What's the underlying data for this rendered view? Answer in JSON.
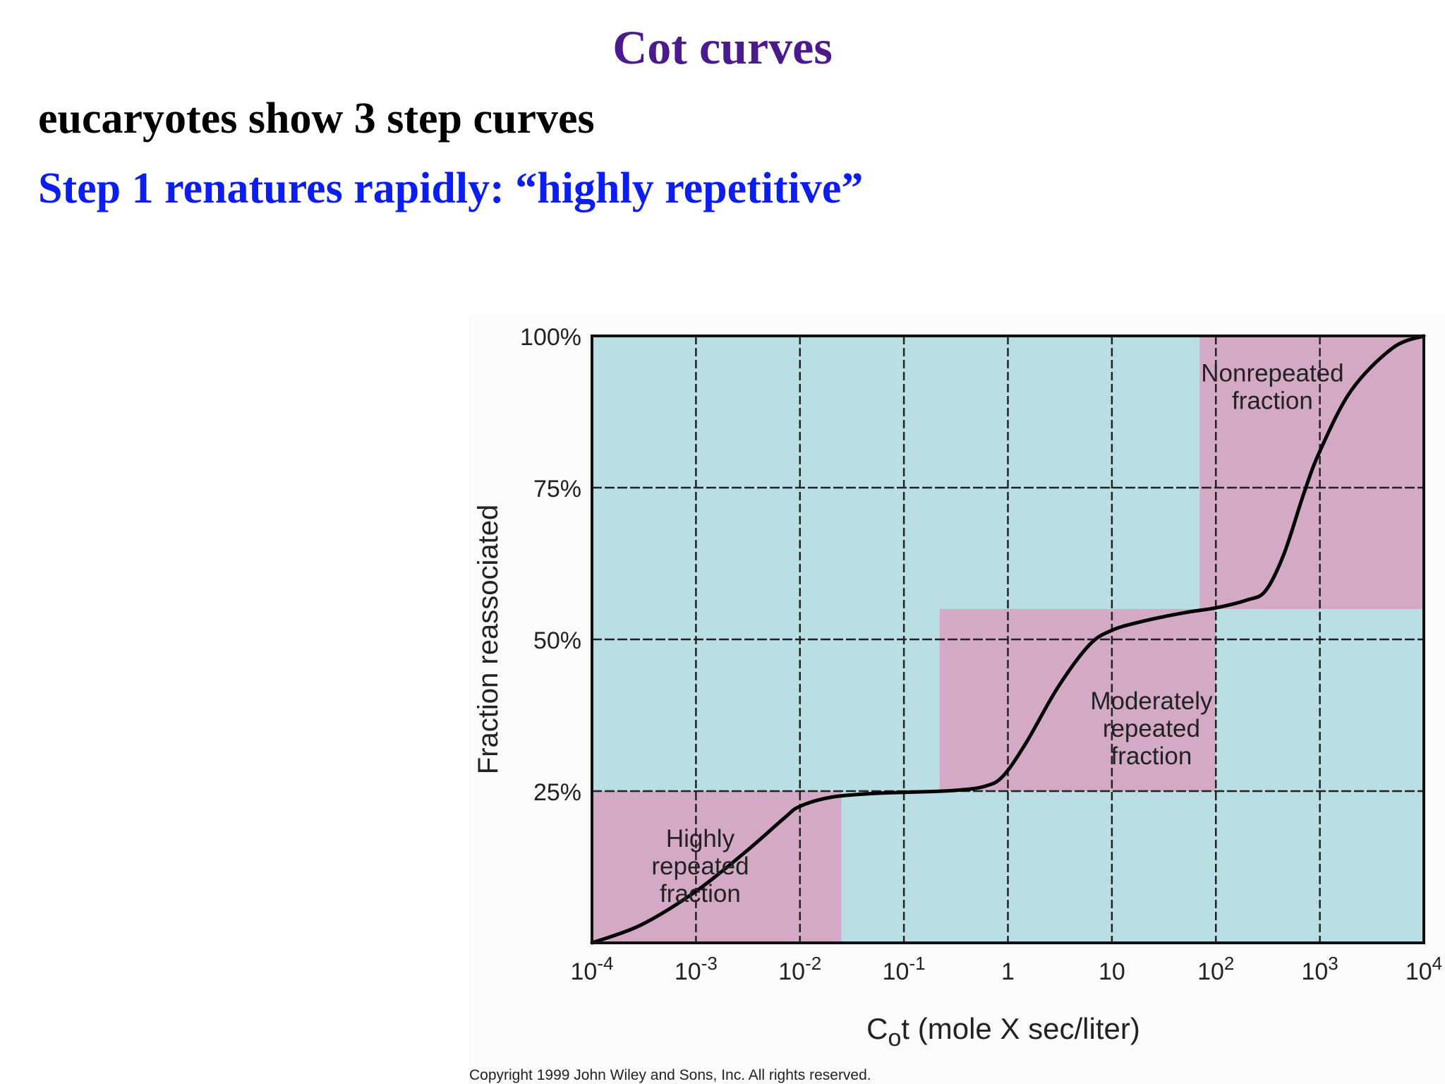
{
  "slide": {
    "title": "Cot curves",
    "line1": "eucaryotes show 3 step curves",
    "line2": "Step 1 renatures rapidly: “highly repetitive”"
  },
  "colors": {
    "title": "#4B1A8C",
    "line2": "#0B1DF0",
    "region_blue": "#B9DEE4",
    "region_pink": "#D3A9C6",
    "curve": "#000000"
  },
  "chart_data": {
    "type": "line",
    "x_scale": "log",
    "xlim": [
      0.0001,
      10000
    ],
    "ylim": [
      0,
      100
    ],
    "xlabel_main": "C",
    "xlabel_sub": "o",
    "xlabel_rest": "t (mole X sec/liter)",
    "ylabel": "Fraction reassociated",
    "x_ticks": [
      {
        "value": 0.0001,
        "base": "10",
        "exp": "-4"
      },
      {
        "value": 0.001,
        "base": "10",
        "exp": "-3"
      },
      {
        "value": 0.01,
        "base": "10",
        "exp": "-2"
      },
      {
        "value": 0.1,
        "base": "10",
        "exp": "-1"
      },
      {
        "value": 1,
        "base": "1",
        "exp": ""
      },
      {
        "value": 10,
        "base": "10",
        "exp": ""
      },
      {
        "value": 100,
        "base": "10",
        "exp": "2"
      },
      {
        "value": 1000,
        "base": "10",
        "exp": "3"
      },
      {
        "value": 10000,
        "base": "10",
        "exp": "4"
      }
    ],
    "y_ticks": [
      {
        "value": 25,
        "label": "25%"
      },
      {
        "value": 50,
        "label": "50%"
      },
      {
        "value": 75,
        "label": "75%"
      },
      {
        "value": 100,
        "label": "100%"
      }
    ],
    "grid": true,
    "regions": [
      {
        "name": "highly",
        "x0": 0.0001,
        "x1": 0.025,
        "y0": 0,
        "y1": 25,
        "lines": [
          "Highly",
          "repeated",
          "fraction"
        ]
      },
      {
        "name": "moderately",
        "x0": 0.22,
        "x1": 100,
        "y0": 25,
        "y1": 55,
        "lines": [
          "Moderately",
          "repeated",
          "fraction"
        ]
      },
      {
        "name": "nonrepeated",
        "x0": 70,
        "x1": 10000,
        "y0": 55,
        "y1": 100,
        "lines": [
          "Nonrepeated",
          "fraction"
        ]
      }
    ],
    "series": [
      {
        "points": [
          [
            0.0001,
            0
          ],
          [
            0.0003,
            3
          ],
          [
            0.001,
            8.5
          ],
          [
            0.003,
            15
          ],
          [
            0.007,
            20.5
          ],
          [
            0.01,
            22.5
          ],
          [
            0.02,
            24
          ],
          [
            0.05,
            24.6
          ],
          [
            0.1,
            24.8
          ],
          [
            0.3,
            25.1
          ],
          [
            0.6,
            25.8
          ],
          [
            0.9,
            27.5
          ],
          [
            1.5,
            33
          ],
          [
            3,
            42
          ],
          [
            6,
            49
          ],
          [
            10,
            51.5
          ],
          [
            20,
            53
          ],
          [
            50,
            54.4
          ],
          [
            100,
            55.2
          ],
          [
            200,
            56.5
          ],
          [
            300,
            58
          ],
          [
            450,
            64
          ],
          [
            700,
            74
          ],
          [
            1000,
            81
          ],
          [
            2000,
            91
          ],
          [
            5000,
            98
          ],
          [
            10000,
            100
          ]
        ]
      }
    ],
    "copyright": "Copyright 1999 John Wiley and Sons, Inc. All rights reserved."
  }
}
